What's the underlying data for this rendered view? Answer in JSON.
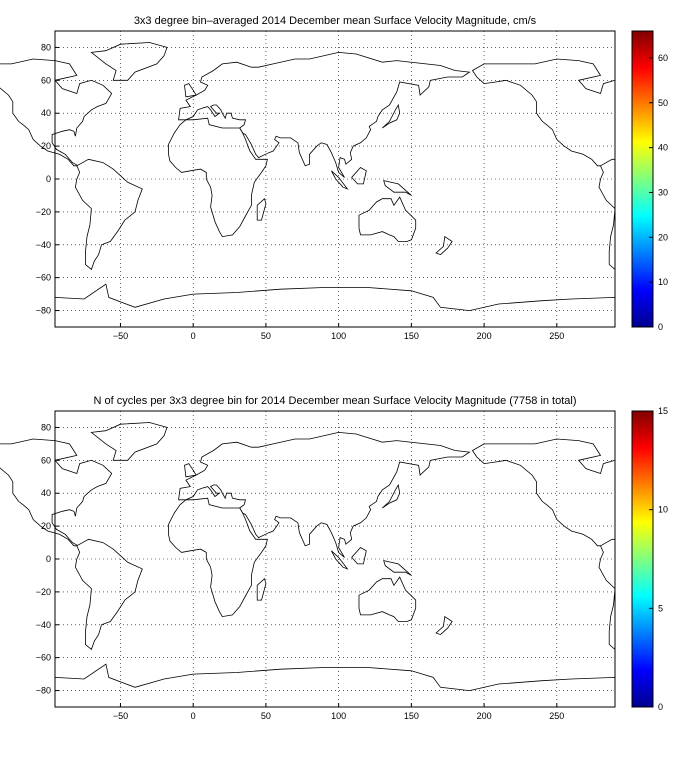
{
  "chart_data": [
    {
      "type": "heatmap",
      "title": "3x3 degree bin–averaged 2014 December mean Surface Velocity Magnitude, cm/s",
      "xlim": [
        -95,
        290
      ],
      "ylim": [
        -90,
        90
      ],
      "xticks": [
        -50,
        0,
        50,
        100,
        150,
        200,
        250
      ],
      "yticks": [
        80,
        60,
        40,
        20,
        0,
        -20,
        -40,
        -60,
        -80
      ],
      "grid": true,
      "colorbar": {
        "min": 0,
        "max": 66,
        "ticks": [
          0,
          10,
          20,
          30,
          40,
          50,
          60
        ]
      },
      "bin_size_deg": 3
    },
    {
      "type": "heatmap",
      "title": "N of cycles per 3x3 degree bin for 2014 December mean Surface Velocity Magnitude (7758 in total)",
      "xlim": [
        -95,
        290
      ],
      "ylim": [
        -90,
        90
      ],
      "xticks": [
        -50,
        0,
        50,
        100,
        150,
        200,
        250
      ],
      "yticks": [
        80,
        60,
        40,
        20,
        0,
        -20,
        -40,
        -60,
        -80
      ],
      "grid": true,
      "colorbar": {
        "min": 0,
        "max": 15,
        "ticks": [
          0,
          5,
          10,
          15
        ]
      },
      "bin_size_deg": 3
    }
  ],
  "colors": {
    "colormap": "jet",
    "land_outline": "#000000",
    "grid": "#000000"
  }
}
